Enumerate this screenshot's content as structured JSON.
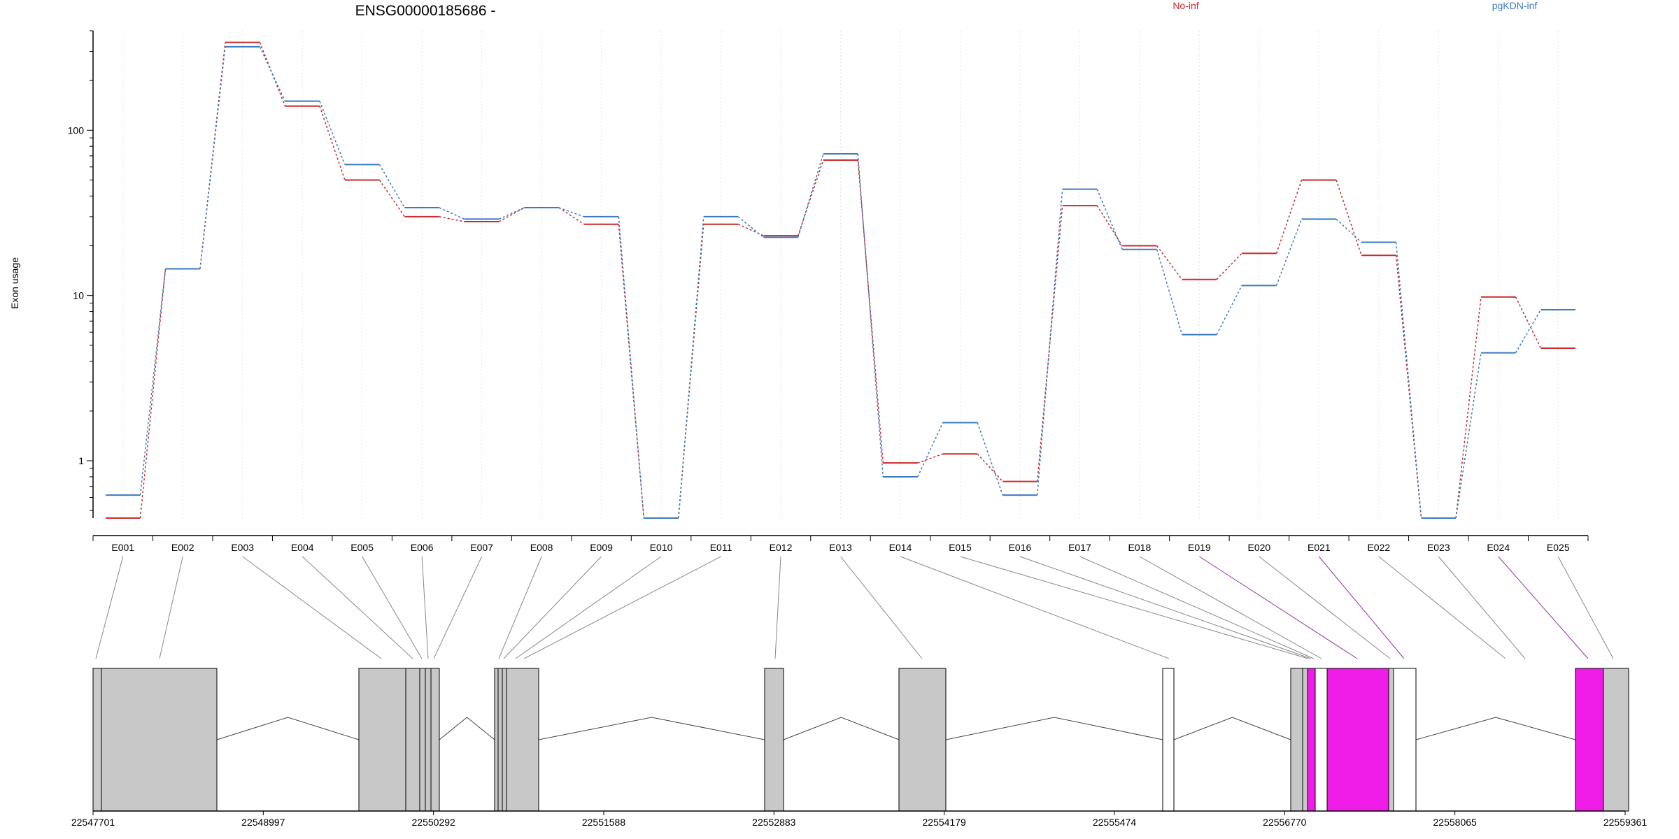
{
  "title": "ENSG00000185686 -",
  "ylabel": "Exon usage",
  "legend": [
    {
      "name": "No-inf",
      "color": "#cc2a2a"
    },
    {
      "name": "pgKDN-inf",
      "color": "#3a7abf"
    }
  ],
  "chart_data": {
    "type": "line",
    "title": "ENSG00000185686 -",
    "xlabel": "",
    "ylabel": "Exon usage",
    "yscale": "log",
    "ylim": [
      0.45,
      400
    ],
    "yticks": [
      "1",
      "10",
      "100"
    ],
    "grid": "vertical dotted lines at exon positions",
    "legend_position": "top-right",
    "categories": [
      "E001",
      "E002",
      "E003",
      "E004",
      "E005",
      "E006",
      "E007",
      "E008",
      "E009",
      "E010",
      "E011",
      "E012",
      "E013",
      "E014",
      "E015",
      "E016",
      "E017",
      "E018",
      "E019",
      "E020",
      "E021",
      "E022",
      "E023",
      "E024",
      "E025"
    ],
    "series": [
      {
        "name": "No-inf",
        "color": "#cc2a2a",
        "values": [
          0.45,
          14.5,
          340,
          140,
          50,
          30,
          28,
          34,
          27,
          0.45,
          27,
          23,
          66,
          0.97,
          1.1,
          0.75,
          35,
          20,
          12.5,
          18,
          50,
          17.5,
          0.45,
          9.8,
          4.8
        ]
      },
      {
        "name": "pgKDN-inf",
        "color": "#3a7abf",
        "values": [
          0.62,
          14.5,
          320,
          150,
          62,
          34,
          29,
          34,
          30,
          0.45,
          30,
          22.5,
          72,
          0.8,
          1.7,
          0.62,
          44,
          19,
          5.8,
          11.5,
          29,
          21,
          0.45,
          4.5,
          8.2
        ]
      }
    ],
    "genomic_axis": {
      "ticks": [
        "22547701",
        "22548997",
        "22550292",
        "22551588",
        "22552883",
        "22554179",
        "22555474",
        "22556770",
        "22558065",
        "22559361"
      ]
    },
    "exon_track": {
      "exon_fill_colors": {
        "normal": "#c8c8c8",
        "significant": "#ef1be6",
        "nonCounted": "#ffffff"
      }
    }
  }
}
